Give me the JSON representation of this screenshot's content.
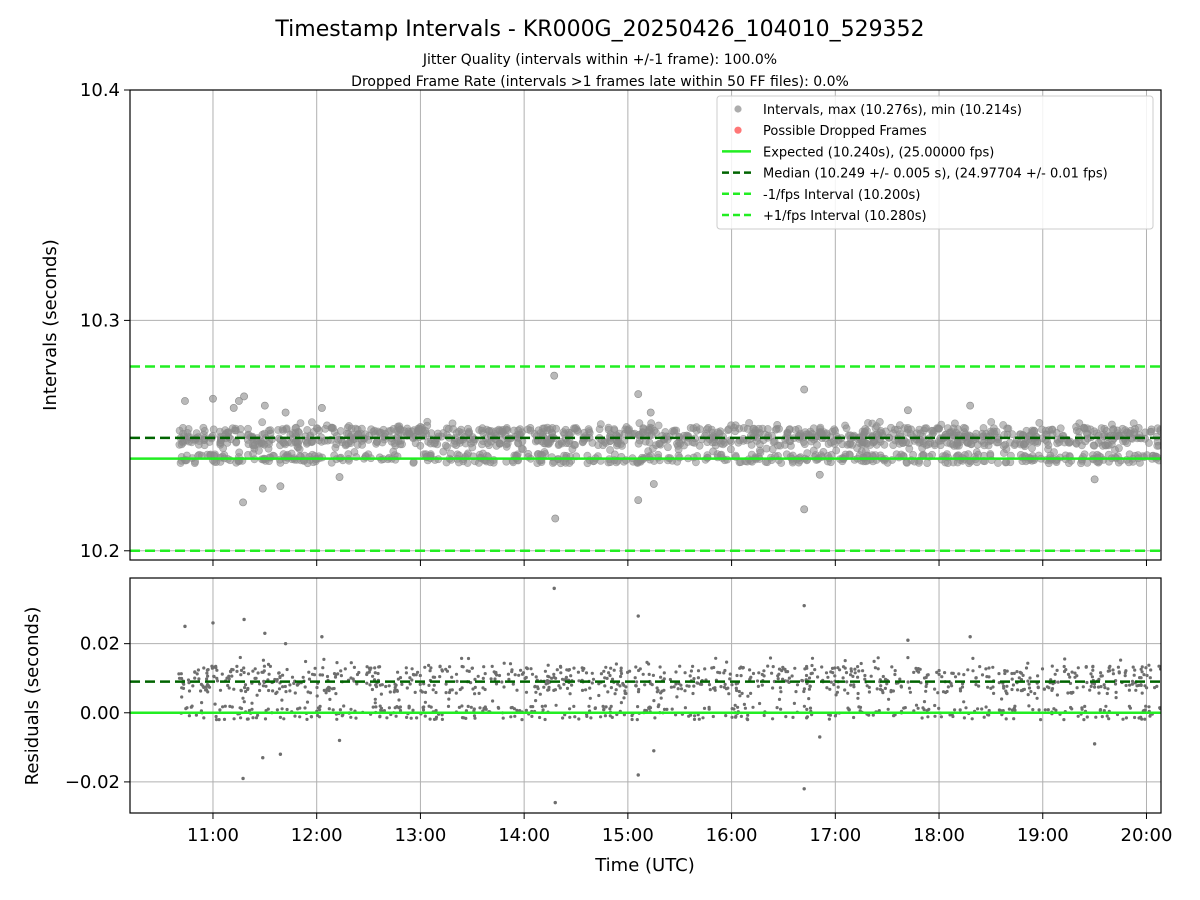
{
  "chart_data": {
    "type": "scatter",
    "title": "Timestamp Intervals - KR000G_20250426_104010_529352",
    "subtitle_lines": [
      "Jitter Quality (intervals within +/-1 frame): 100.0%",
      "Dropped Frame Rate (intervals >1 frames late within 50 FF files): 0.0%"
    ],
    "xlabel": "Time (UTC)",
    "x_ticks": [
      {
        "value": 11,
        "label": "11:00"
      },
      {
        "value": 12,
        "label": "12:00"
      },
      {
        "value": 13,
        "label": "13:00"
      },
      {
        "value": 14,
        "label": "14:00"
      },
      {
        "value": 15,
        "label": "15:00"
      },
      {
        "value": 16,
        "label": "16:00"
      },
      {
        "value": 17,
        "label": "17:00"
      },
      {
        "value": 18,
        "label": "18:00"
      },
      {
        "value": 19,
        "label": "19:00"
      },
      {
        "value": 20,
        "label": "20:00"
      }
    ],
    "xlim": [
      10.2,
      20.14
    ],
    "x_start": 10.67,
    "x_end": 20.14,
    "grid": true,
    "legend_position": "top-right",
    "upper": {
      "ylabel": "Intervals (seconds)",
      "ylim": [
        10.196,
        10.4
      ],
      "y_ticks": [
        {
          "value": 10.2,
          "label": "10.2"
        },
        {
          "value": 10.3,
          "label": "10.3"
        },
        {
          "value": 10.4,
          "label": "10.4"
        }
      ],
      "expected": 10.24,
      "median": 10.249,
      "lower_bound": 10.2,
      "upper_bound": 10.28,
      "max": 10.276,
      "min": 10.214,
      "band_center": 10.249,
      "band_spread": 0.006,
      "outliers": [
        {
          "x": 10.73,
          "y": 10.265
        },
        {
          "x": 11.0,
          "y": 10.266
        },
        {
          "x": 11.2,
          "y": 10.262
        },
        {
          "x": 11.25,
          "y": 10.265
        },
        {
          "x": 11.3,
          "y": 10.267
        },
        {
          "x": 11.29,
          "y": 10.221
        },
        {
          "x": 11.48,
          "y": 10.227
        },
        {
          "x": 11.65,
          "y": 10.228
        },
        {
          "x": 11.5,
          "y": 10.263
        },
        {
          "x": 11.7,
          "y": 10.26
        },
        {
          "x": 12.05,
          "y": 10.262
        },
        {
          "x": 12.22,
          "y": 10.232
        },
        {
          "x": 14.29,
          "y": 10.276
        },
        {
          "x": 14.3,
          "y": 10.214
        },
        {
          "x": 15.1,
          "y": 10.268
        },
        {
          "x": 15.1,
          "y": 10.222
        },
        {
          "x": 15.25,
          "y": 10.229
        },
        {
          "x": 15.22,
          "y": 10.26
        },
        {
          "x": 16.7,
          "y": 10.27
        },
        {
          "x": 16.7,
          "y": 10.218
        },
        {
          "x": 16.85,
          "y": 10.233
        },
        {
          "x": 17.7,
          "y": 10.261
        },
        {
          "x": 18.3,
          "y": 10.263
        },
        {
          "x": 19.5,
          "y": 10.231
        }
      ]
    },
    "lower": {
      "ylabel": "Residuals (seconds)",
      "ylim": [
        -0.029,
        0.039
      ],
      "y_ticks": [
        {
          "value": 0.02,
          "label": "0.02"
        },
        {
          "value": 0.0,
          "label": "0.00"
        },
        {
          "value": -0.02,
          "label": "−0.02"
        }
      ],
      "zero_line": 0.0,
      "median_residual": 0.009,
      "outliers": [
        {
          "x": 10.73,
          "y": 0.025
        },
        {
          "x": 11.0,
          "y": 0.026
        },
        {
          "x": 11.3,
          "y": 0.027
        },
        {
          "x": 11.29,
          "y": -0.019
        },
        {
          "x": 11.48,
          "y": -0.013
        },
        {
          "x": 11.65,
          "y": -0.012
        },
        {
          "x": 11.5,
          "y": 0.023
        },
        {
          "x": 11.7,
          "y": 0.02
        },
        {
          "x": 12.05,
          "y": 0.022
        },
        {
          "x": 12.22,
          "y": -0.008
        },
        {
          "x": 14.29,
          "y": 0.036
        },
        {
          "x": 14.3,
          "y": -0.026
        },
        {
          "x": 15.1,
          "y": 0.028
        },
        {
          "x": 15.1,
          "y": -0.018
        },
        {
          "x": 15.25,
          "y": -0.011
        },
        {
          "x": 16.7,
          "y": 0.031
        },
        {
          "x": 16.7,
          "y": -0.022
        },
        {
          "x": 16.85,
          "y": -0.007
        },
        {
          "x": 17.7,
          "y": 0.021
        },
        {
          "x": 18.3,
          "y": 0.022
        },
        {
          "x": 19.5,
          "y": -0.009
        }
      ]
    },
    "legend": [
      {
        "label": "Intervals, max (10.276s), min (10.214s)",
        "kind": "dot",
        "color": "#999999"
      },
      {
        "label": "Possible Dropped Frames",
        "kind": "dot",
        "color": "#ff5555"
      },
      {
        "label": "Expected (10.240s), (25.00000 fps)",
        "kind": "solid",
        "color": "#22ee22"
      },
      {
        "label": "Median (10.249 +/- 0.005 s), (24.97704 +/- 0.01 fps)",
        "kind": "dashed",
        "color": "#006400"
      },
      {
        "label": "-1/fps Interval (10.200s)",
        "kind": "dashed",
        "color": "#22ee22"
      },
      {
        "label": "+1/fps Interval (10.280s)",
        "kind": "dashed",
        "color": "#22ee22"
      }
    ],
    "colors": {
      "points_upper": "#8a8a8a",
      "points_lower": "#6e6e6e",
      "expected": "#22ee22",
      "median": "#006400",
      "bounds": "#22ee22",
      "grid": "#b0b0b0"
    }
  }
}
